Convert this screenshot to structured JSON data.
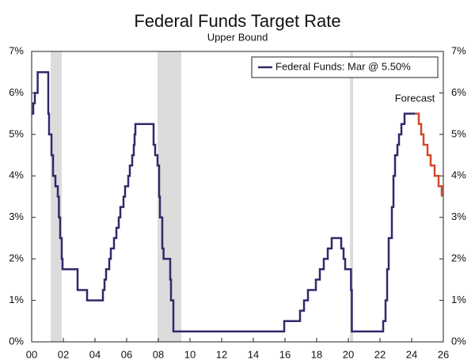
{
  "chart_data": {
    "type": "line",
    "title": "Federal Funds Target Rate",
    "subtitle": "Upper Bound",
    "step": true,
    "legend": "top-right",
    "annotation": "Forecast",
    "xlim": [
      2000,
      2026
    ],
    "xticks": [
      {
        "value": 2000,
        "label": "00"
      },
      {
        "value": 2002,
        "label": "02"
      },
      {
        "value": 2004,
        "label": "04"
      },
      {
        "value": 2006,
        "label": "06"
      },
      {
        "value": 2008,
        "label": "08"
      },
      {
        "value": 2010,
        "label": "10"
      },
      {
        "value": 2012,
        "label": "12"
      },
      {
        "value": 2014,
        "label": "14"
      },
      {
        "value": 2016,
        "label": "16"
      },
      {
        "value": 2018,
        "label": "18"
      },
      {
        "value": 2020,
        "label": "20"
      },
      {
        "value": 2022,
        "label": "22"
      },
      {
        "value": 2024,
        "label": "24"
      },
      {
        "value": 2026,
        "label": "26"
      }
    ],
    "ylim": [
      0,
      7
    ],
    "yticks": [
      {
        "value": 0,
        "label": "0%"
      },
      {
        "value": 1,
        "label": "1%"
      },
      {
        "value": 2,
        "label": "2%"
      },
      {
        "value": 3,
        "label": "3%"
      },
      {
        "value": 4,
        "label": "4%"
      },
      {
        "value": 5,
        "label": "5%"
      },
      {
        "value": 6,
        "label": "6%"
      },
      {
        "value": 7,
        "label": "7%"
      }
    ],
    "y2lim": [
      0,
      7
    ],
    "y2ticks": [
      {
        "value": 0,
        "label": "0%"
      },
      {
        "value": 1,
        "label": "1%"
      },
      {
        "value": 2,
        "label": "2%"
      },
      {
        "value": 3,
        "label": "3%"
      },
      {
        "value": 4,
        "label": "4%"
      },
      {
        "value": 5,
        "label": "5%"
      },
      {
        "value": 6,
        "label": "6%"
      },
      {
        "value": 7,
        "label": "7%"
      }
    ],
    "shaded_ranges": [
      [
        2001.2,
        2001.9
      ],
      [
        2007.95,
        2009.45
      ],
      [
        2020.1,
        2020.3
      ]
    ],
    "shade_color": "#dcdcdc",
    "series": [
      {
        "name": "Federal Funds: Mar @ 5.50%",
        "color": "#2e2a6b",
        "x": [
          2000.0,
          2000.1,
          2000.2,
          2000.38,
          2001.0,
          2001.05,
          2001.1,
          2001.25,
          2001.35,
          2001.5,
          2001.65,
          2001.72,
          2001.8,
          2001.9,
          2001.95,
          2002.9,
          2003.5,
          2004.5,
          2004.6,
          2004.7,
          2004.9,
          2005.0,
          2005.2,
          2005.35,
          2005.5,
          2005.6,
          2005.8,
          2005.9,
          2006.1,
          2006.2,
          2006.35,
          2006.45,
          2006.5,
          2006.55,
          2007.7,
          2007.8,
          2007.95,
          2008.05,
          2008.1,
          2008.25,
          2008.33,
          2008.75,
          2008.8,
          2008.95,
          2015.95,
          2016.95,
          2017.2,
          2017.45,
          2017.95,
          2018.2,
          2018.45,
          2018.7,
          2018.95,
          2019.55,
          2019.7,
          2019.8,
          2020.17,
          2020.22,
          2022.2,
          2022.35,
          2022.45,
          2022.55,
          2022.75,
          2022.85,
          2022.95,
          2023.1,
          2023.2,
          2023.35,
          2023.55,
          2024.2
        ],
        "values": [
          5.5,
          5.75,
          6.0,
          6.5,
          6.5,
          5.5,
          5.0,
          4.5,
          4.0,
          3.75,
          3.5,
          3.0,
          2.5,
          2.0,
          1.75,
          1.25,
          1.0,
          1.25,
          1.5,
          1.75,
          2.0,
          2.25,
          2.5,
          2.75,
          3.0,
          3.25,
          3.5,
          3.75,
          4.0,
          4.25,
          4.5,
          4.75,
          5.0,
          5.25,
          4.75,
          4.5,
          4.25,
          3.5,
          3.0,
          2.25,
          2.0,
          1.5,
          1.0,
          0.25,
          0.5,
          0.75,
          1.0,
          1.25,
          1.5,
          1.75,
          2.0,
          2.25,
          2.5,
          2.25,
          2.0,
          1.75,
          1.25,
          0.25,
          0.5,
          1.0,
          1.75,
          2.5,
          3.25,
          4.0,
          4.5,
          4.75,
          5.0,
          5.25,
          5.5,
          5.5
        ]
      },
      {
        "color": "#d04a2a",
        "x": [
          2024.2,
          2024.45,
          2024.6,
          2024.75,
          2025.0,
          2025.2,
          2025.45,
          2025.7,
          2025.9
        ],
        "values": [
          5.5,
          5.25,
          5.0,
          4.75,
          4.5,
          4.25,
          4.0,
          3.75,
          3.5
        ]
      }
    ]
  }
}
